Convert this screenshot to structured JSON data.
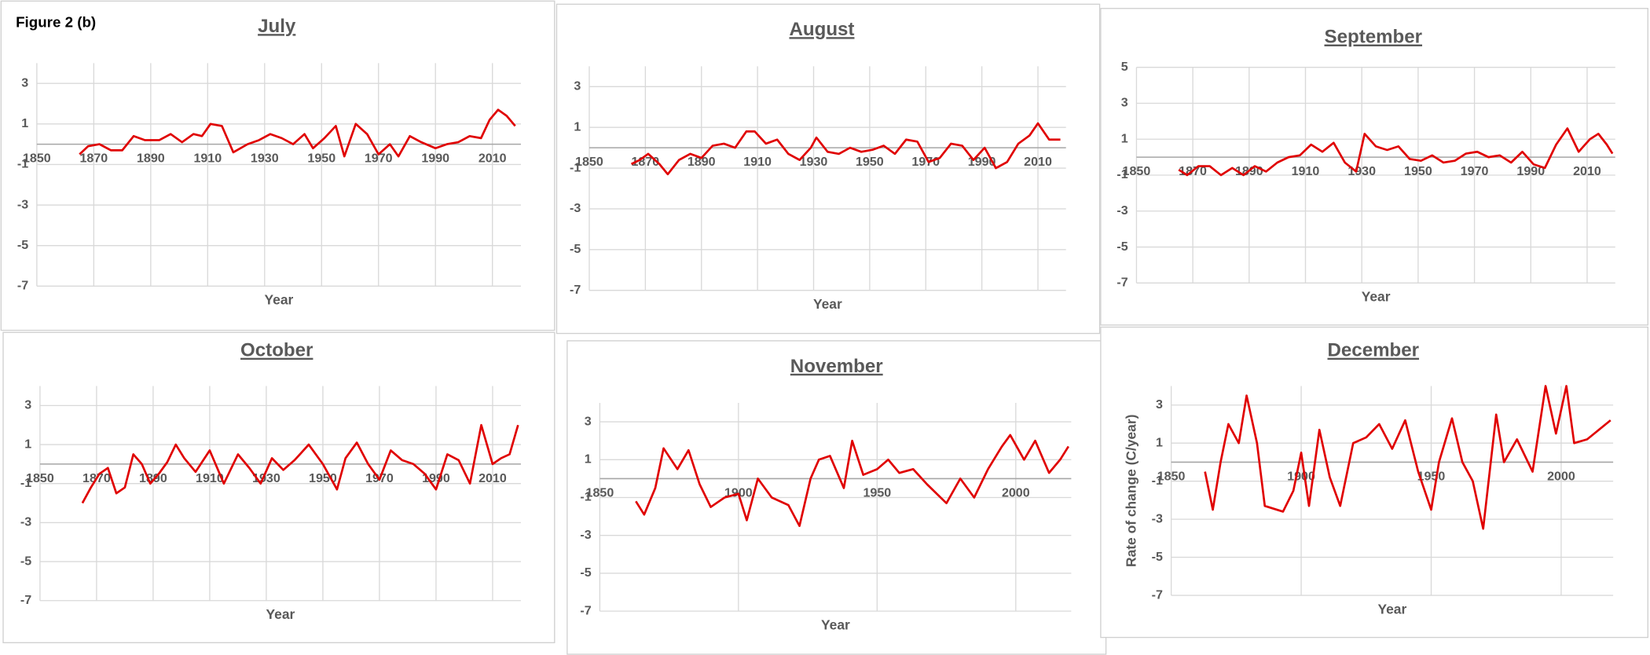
{
  "figure_label": "Figure 2 (b)",
  "chart_data": [
    {
      "type": "line",
      "title": "July",
      "xlabel": "Year",
      "x": [
        1865,
        1868,
        1872,
        1876,
        1880,
        1884,
        1888,
        1893,
        1897,
        1901,
        1905,
        1908,
        1911,
        1915,
        1919,
        1924,
        1928,
        1932,
        1936,
        1940,
        1944,
        1947,
        1951,
        1955,
        1958,
        1962,
        1966,
        1970,
        1974,
        1977,
        1981,
        1985,
        1990,
        1994,
        1998,
        2002,
        2006,
        2009,
        2012,
        2015,
        2018
      ],
      "values": [
        -0.5,
        -0.1,
        0,
        -0.3,
        -0.3,
        0.4,
        0.2,
        0.2,
        0.5,
        0.1,
        0.5,
        0.4,
        1,
        0.9,
        -0.4,
        0,
        0.2,
        0.5,
        0.3,
        0,
        0.5,
        -0.2,
        0.3,
        0.9,
        -0.6,
        1,
        0.5,
        -0.5,
        0,
        -0.6,
        0.4,
        0.1,
        -0.2,
        0,
        0.1,
        0.4,
        0.3,
        1.2,
        1.7,
        1.4,
        0.9
      ],
      "color": "#e00000",
      "xlim": [
        1850,
        2020
      ],
      "ylim": [
        -7,
        4
      ],
      "xticks": [
        1850,
        1870,
        1890,
        1910,
        1930,
        1950,
        1970,
        1990,
        2010
      ],
      "yticks": [
        3,
        1,
        -1,
        -3,
        -5,
        -7
      ],
      "grid": true
    },
    {
      "type": "line",
      "title": "August",
      "xlabel": "Year",
      "x": [
        1865,
        1868,
        1871,
        1875,
        1878,
        1882,
        1886,
        1890,
        1894,
        1898,
        1902,
        1906,
        1909,
        1913,
        1917,
        1921,
        1925,
        1929,
        1931,
        1935,
        1939,
        1943,
        1947,
        1951,
        1955,
        1959,
        1963,
        1967,
        1971,
        1975,
        1979,
        1983,
        1987,
        1991,
        1995,
        1999,
        2003,
        2007,
        2010,
        2014,
        2018
      ],
      "values": [
        -0.8,
        -0.6,
        -0.3,
        -0.8,
        -1.3,
        -0.6,
        -0.3,
        -0.5,
        0.1,
        0.2,
        0,
        0.8,
        0.8,
        0.2,
        0.4,
        -0.3,
        -0.6,
        0,
        0.5,
        -0.2,
        -0.3,
        0,
        -0.2,
        -0.1,
        0.1,
        -0.3,
        0.4,
        0.3,
        -0.7,
        -0.5,
        0.2,
        0.1,
        -0.6,
        0,
        -1,
        -0.7,
        0.2,
        0.6,
        1.2,
        0.4,
        0.4
      ],
      "color": "#e00000",
      "xlim": [
        1850,
        2020
      ],
      "ylim": [
        -7,
        4
      ],
      "xticks": [
        1850,
        1870,
        1890,
        1910,
        1930,
        1950,
        1970,
        1990,
        2010
      ],
      "yticks": [
        3,
        1,
        -1,
        -3,
        -5,
        -7
      ],
      "grid": true
    },
    {
      "type": "line",
      "title": "September",
      "xlabel": "Year",
      "x": [
        1865,
        1868,
        1872,
        1876,
        1880,
        1884,
        1888,
        1892,
        1896,
        1900,
        1904,
        1908,
        1912,
        1916,
        1920,
        1924,
        1928,
        1931,
        1935,
        1939,
        1943,
        1947,
        1951,
        1955,
        1959,
        1963,
        1967,
        1971,
        1975,
        1979,
        1983,
        1987,
        1991,
        1995,
        1999,
        2003,
        2007,
        2011,
        2014,
        2017,
        2019
      ],
      "values": [
        -0.7,
        -1,
        -0.5,
        -0.5,
        -1,
        -0.6,
        -1,
        -0.5,
        -0.8,
        -0.3,
        0,
        0.1,
        0.7,
        0.3,
        0.8,
        -0.3,
        -0.8,
        1.3,
        0.6,
        0.4,
        0.6,
        -0.1,
        -0.2,
        0.1,
        -0.3,
        -0.2,
        0.2,
        0.3,
        0,
        0.1,
        -0.3,
        0.3,
        -0.4,
        -0.6,
        0.7,
        1.6,
        0.3,
        1,
        1.3,
        0.7,
        0.2
      ],
      "color": "#e00000",
      "xlim": [
        1850,
        2020
      ],
      "ylim": [
        -7,
        5
      ],
      "xticks": [
        1850,
        1870,
        1890,
        1910,
        1930,
        1950,
        1970,
        1990,
        2010
      ],
      "yticks": [
        5,
        3,
        1,
        -1,
        -3,
        -5,
        -7
      ],
      "grid": true
    },
    {
      "type": "line",
      "title": "October",
      "xlabel": "Year",
      "x": [
        1865,
        1868,
        1871,
        1874,
        1877,
        1880,
        1883,
        1886,
        1889,
        1892,
        1895,
        1898,
        1901,
        1905,
        1910,
        1915,
        1920,
        1924,
        1928,
        1932,
        1936,
        1940,
        1945,
        1950,
        1955,
        1958,
        1962,
        1966,
        1970,
        1974,
        1978,
        1982,
        1986,
        1990,
        1994,
        1998,
        2002,
        2006,
        2010,
        2013,
        2016,
        2019
      ],
      "values": [
        -2,
        -1.2,
        -0.5,
        -0.2,
        -1.5,
        -1.2,
        0.5,
        0,
        -1,
        -0.5,
        0.1,
        1,
        0.3,
        -0.4,
        0.7,
        -1,
        0.5,
        -0.2,
        -1,
        0.3,
        -0.3,
        0.2,
        1,
        0,
        -1.3,
        0.3,
        1.1,
        0,
        -0.8,
        0.7,
        0.2,
        0,
        -0.5,
        -1.3,
        0.5,
        0.2,
        -1,
        2,
        0,
        0.3,
        0.5,
        2
      ],
      "color": "#e00000",
      "xlim": [
        1850,
        2020
      ],
      "ylim": [
        -7,
        4
      ],
      "xticks": [
        1850,
        1870,
        1890,
        1910,
        1930,
        1950,
        1970,
        1990,
        2010
      ],
      "yticks": [
        3,
        1,
        -1,
        -3,
        -5,
        -7
      ],
      "grid": true
    },
    {
      "type": "line",
      "title": "November",
      "xlabel": "Year",
      "x": [
        1863,
        1866,
        1870,
        1873,
        1878,
        1882,
        1886,
        1890,
        1895,
        1900,
        1903,
        1907,
        1912,
        1918,
        1922,
        1926,
        1929,
        1933,
        1938,
        1941,
        1945,
        1950,
        1954,
        1958,
        1963,
        1968,
        1975,
        1980,
        1985,
        1990,
        1995,
        1998,
        2003,
        2007,
        2012,
        2016,
        2019
      ],
      "values": [
        -1.2,
        -1.9,
        -0.5,
        1.6,
        0.5,
        1.5,
        -0.3,
        -1.5,
        -1,
        -0.8,
        -2.2,
        0,
        -1,
        -1.4,
        -2.5,
        0,
        1,
        1.2,
        -0.5,
        2,
        0.2,
        0.5,
        1,
        0.3,
        0.5,
        -0.3,
        -1.3,
        0,
        -1,
        0.5,
        1.7,
        2.3,
        1,
        2,
        0.3,
        1,
        1.7
      ],
      "color": "#e00000",
      "xlim": [
        1850,
        2020
      ],
      "ylim": [
        -7,
        4
      ],
      "xticks": [
        1850,
        1900,
        1950,
        2000
      ],
      "yticks": [
        3,
        1,
        -1,
        -3,
        -5,
        -7
      ],
      "grid": true
    },
    {
      "type": "line",
      "title": "December",
      "xlabel": "Year",
      "ylabel": "Rate of change (C/year)",
      "x": [
        1863,
        1866,
        1869,
        1872,
        1876,
        1879,
        1883,
        1886,
        1893,
        1897,
        1900,
        1903,
        1907,
        1911,
        1915,
        1920,
        1925,
        1930,
        1935,
        1940,
        1945,
        1950,
        1953,
        1958,
        1962,
        1966,
        1970,
        1975,
        1978,
        1983,
        1989,
        1994,
        1998,
        2002,
        2005,
        2010,
        2019
      ],
      "values": [
        -0.5,
        -2.5,
        0,
        2,
        1,
        3.5,
        1,
        -2.3,
        -2.6,
        -1.5,
        0.5,
        -2.3,
        1.7,
        -0.8,
        -2.3,
        1,
        1.3,
        2,
        0.7,
        2.2,
        -0.5,
        -2.5,
        0,
        2.3,
        0,
        -1,
        -3.5,
        2.5,
        0,
        1.2,
        -0.5,
        4,
        1.5,
        4,
        1,
        1.2,
        2.2
      ],
      "color": "#e00000",
      "xlim": [
        1850,
        2020
      ],
      "ylim": [
        -7,
        4
      ],
      "xticks": [
        1850,
        1900,
        1950,
        2000
      ],
      "yticks": [
        3,
        1,
        -1,
        -3,
        -5,
        -7
      ],
      "grid": true
    }
  ]
}
